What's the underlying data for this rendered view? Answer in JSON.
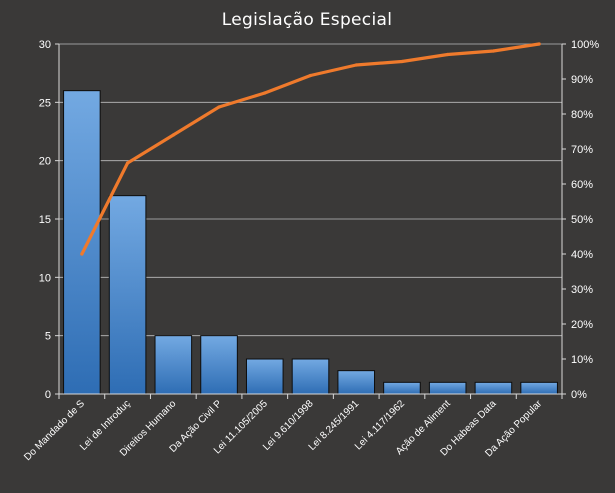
{
  "chart_data": {
    "type": "bar",
    "title": "Legislação  Especial",
    "categories": [
      "Do Mandado de S",
      "Lei de Introduç",
      "Direitos Humano",
      "Da Ação Civil P",
      "Lei 11.105/2005",
      "Lei 9.610/1998",
      "Lei 8.245/1991",
      "Lei 4.117/1962",
      "Ação de Aliment",
      "Do Habeas Data",
      "Da Ação Popular"
    ],
    "series": [
      {
        "type": "bar",
        "axis": "left",
        "values": [
          26,
          17,
          5,
          5,
          3,
          3,
          2,
          1,
          1,
          1,
          1
        ]
      },
      {
        "type": "line",
        "axis": "right",
        "values": [
          40,
          66,
          74,
          82,
          86,
          91,
          94,
          95,
          97,
          98,
          100
        ]
      }
    ],
    "y_left": {
      "min": 0,
      "max": 30,
      "ticks": [
        "0",
        "5",
        "10",
        "15",
        "20",
        "25",
        "30"
      ]
    },
    "y_right": {
      "min": 0,
      "max": 100,
      "ticks": [
        "0%",
        "10%",
        "20%",
        "30%",
        "40%",
        "50%",
        "60%",
        "70%",
        "80%",
        "90%",
        "100%"
      ]
    },
    "grid": true,
    "legend": "none",
    "colors": {
      "background": "#3a3938",
      "bar_top": "#73a9e2",
      "bar_bottom": "#2e6db4",
      "line": "#ef7a2c",
      "axis": "#d9d9d9",
      "text": "#ffffff"
    }
  }
}
